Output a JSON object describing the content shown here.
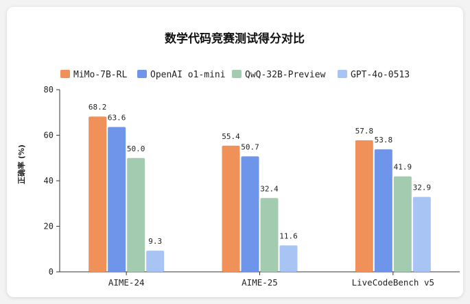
{
  "chart_data": {
    "type": "bar",
    "title": "数学代码竞赛测试得分对比",
    "ylabel": "正确率 (%)",
    "xlabel": "",
    "ylim": [
      0,
      80
    ],
    "yticks": [
      0,
      20,
      40,
      60,
      80
    ],
    "grid": false,
    "legend_position": "top",
    "categories": [
      "AIME-24",
      "AIME-25",
      "LiveCodeBench v5"
    ],
    "series": [
      {
        "name": "MiMo-7B-RL",
        "color": "#f0915a",
        "values": [
          68.2,
          55.4,
          57.8
        ]
      },
      {
        "name": "OpenAI o1-mini",
        "color": "#6f95ea",
        "values": [
          63.6,
          50.7,
          53.8
        ]
      },
      {
        "name": "QwQ-32B-Preview",
        "color": "#a3cbb0",
        "values": [
          50.0,
          32.4,
          41.9
        ]
      },
      {
        "name": "GPT-4o-0513",
        "color": "#a8c4f5",
        "values": [
          9.3,
          11.6,
          32.9
        ]
      }
    ]
  }
}
